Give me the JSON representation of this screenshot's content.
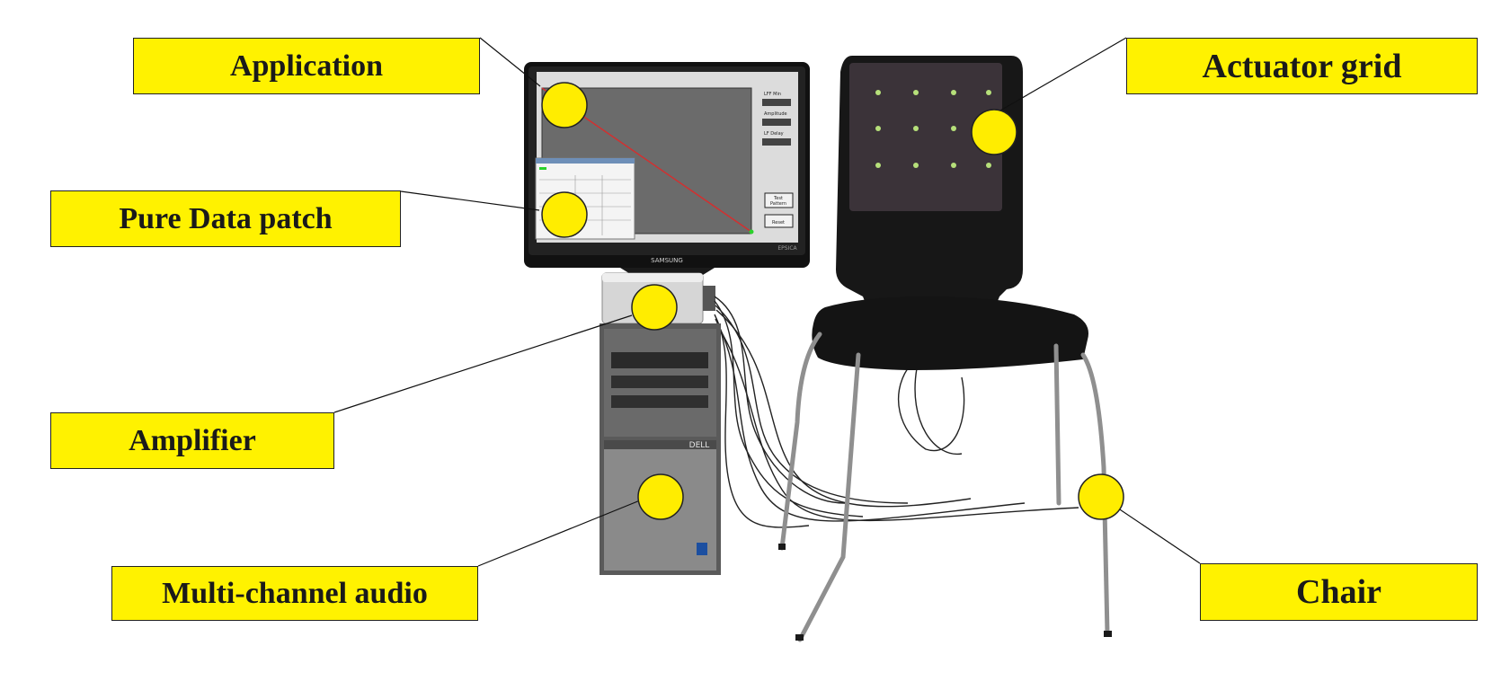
{
  "labels": {
    "application": "Application",
    "pure_data_patch": "Pure Data patch",
    "amplifier": "Amplifier",
    "multi_channel_audio": "Multi-channel audio",
    "actuator_grid": "Actuator grid",
    "chair": "Chair"
  },
  "photo_text": {
    "monitor_brand": "SAMSUNG",
    "monitor_badge": "EPSICA",
    "tower_brand": "DELL",
    "app_label_1": "LFF Min",
    "app_label_2": "Amplitude",
    "app_label_3": "LF Delay",
    "app_button_test_line1": "Test",
    "app_button_test_line2": "Pattern",
    "app_button_reset": "Reset"
  },
  "colors": {
    "label_fill": "#fff200",
    "marker_fill": "#ffed00",
    "outline": "#222222"
  }
}
